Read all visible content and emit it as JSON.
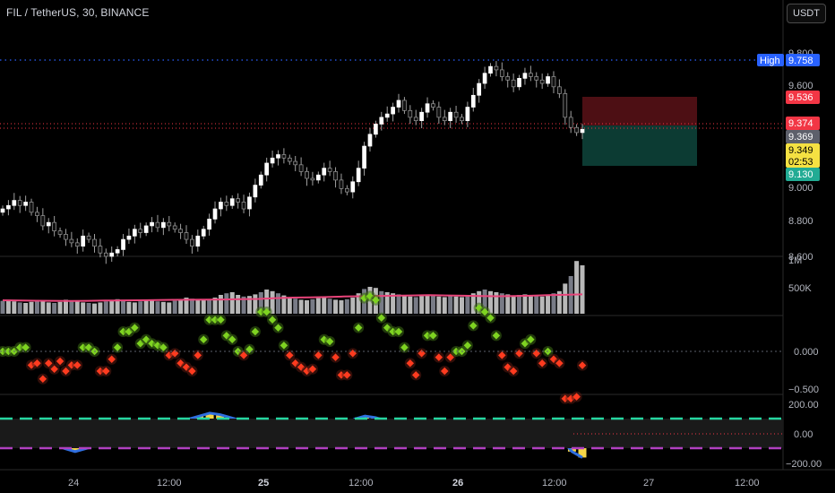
{
  "header": {
    "symbol_title": "FIL / TetherUS, 30, BINANCE",
    "currency_button": "USDT"
  },
  "colors": {
    "background": "#000000",
    "bull_candle": "#ffffff",
    "bear_candle": "#000000",
    "wick": "#a0a0a0",
    "high_line": "#2962ff",
    "current_line": "#f23645",
    "stop_zone": "#4d0f14",
    "target_zone": "#0c3b33",
    "volume_ma": "#e8447a",
    "osc_up": "#7ed321",
    "osc_down": "#ff3b1f",
    "cci_bar": "#f5d547",
    "cci_line": "#2f6fe0",
    "cci_upper": "#26d6a0",
    "cci_lower": "#b040c0"
  },
  "price_axis": {
    "ticks": [
      "9.800",
      "9.600",
      "9.000",
      "8.800",
      "8.600"
    ]
  },
  "price_tags": {
    "high_label": "High",
    "high_value": "9.758",
    "stop_value": "9.536",
    "current_value": "9.374",
    "other_value": "9.369",
    "last_value": "9.349",
    "countdown": "02:53",
    "target_value": "9.130"
  },
  "volume_axis": {
    "ticks": [
      "1M",
      "500K"
    ]
  },
  "osc_axis": {
    "ticks": [
      "0.000",
      "−0.500"
    ]
  },
  "cci_axis": {
    "ticks": [
      "200.00",
      "0.00",
      "−200.00"
    ]
  },
  "time_axis": {
    "labels": [
      "24",
      "12:00",
      "25",
      "12:00",
      "26",
      "12:00",
      "27",
      "12:00"
    ]
  },
  "chart_data": {
    "type": "candlestick",
    "symbol": "FIL/USDT",
    "interval": "30",
    "ylim": [
      8.58,
      9.85
    ],
    "high": 9.758,
    "close": [
      8.88,
      8.9,
      8.93,
      8.9,
      8.92,
      8.86,
      8.84,
      8.78,
      8.8,
      8.75,
      8.73,
      8.7,
      8.68,
      8.66,
      8.72,
      8.7,
      8.66,
      8.62,
      8.6,
      8.62,
      8.64,
      8.7,
      8.72,
      8.76,
      8.74,
      8.78,
      8.8,
      8.77,
      8.8,
      8.78,
      8.76,
      8.74,
      8.7,
      8.66,
      8.72,
      8.76,
      8.82,
      8.88,
      8.92,
      8.9,
      8.94,
      8.92,
      8.88,
      8.95,
      9.02,
      9.08,
      9.15,
      9.18,
      9.2,
      9.18,
      9.16,
      9.14,
      9.1,
      9.06,
      9.05,
      9.08,
      9.12,
      9.1,
      9.05,
      9.0,
      8.98,
      9.04,
      9.12,
      9.25,
      9.32,
      9.38,
      9.42,
      9.44,
      9.48,
      9.52,
      9.46,
      9.42,
      9.4,
      9.45,
      9.5,
      9.48,
      9.42,
      9.4,
      9.45,
      9.42,
      9.4,
      9.48,
      9.55,
      9.62,
      9.68,
      9.72,
      9.7,
      9.66,
      9.64,
      9.6,
      9.65,
      9.68,
      9.66,
      9.64,
      9.62,
      9.66,
      9.6,
      9.56,
      9.42,
      9.36,
      9.33,
      9.349
    ],
    "volume_approx": [
      240000,
      260000,
      230000,
      210000,
      200000,
      220000,
      250000,
      230000,
      210000,
      200000,
      220000,
      260000,
      240000,
      230000,
      210000,
      200000,
      190000,
      210000,
      230000,
      250000,
      270000,
      240000,
      220000,
      210000,
      230000,
      260000,
      250000,
      230000,
      220000,
      210000,
      240000,
      260000,
      300000,
      280000,
      260000,
      250000,
      270000,
      300000,
      350000,
      380000,
      400000,
      350000,
      320000,
      330000,
      360000,
      400000,
      450000,
      420000,
      380000,
      340000,
      300000,
      280000,
      260000,
      250000,
      270000,
      290000,
      300000,
      280000,
      260000,
      250000,
      270000,
      300000,
      380000,
      460000,
      500000,
      480000,
      420000,
      400000,
      380000,
      360000,
      340000,
      320000,
      310000,
      330000,
      350000,
      340000,
      320000,
      310000,
      330000,
      320000,
      310000,
      340000,
      380000,
      420000,
      450000,
      420000,
      400000,
      380000,
      360000,
      340000,
      350000,
      360000,
      340000,
      330000,
      320000,
      340000,
      380000,
      420000,
      560000,
      700000,
      980000,
      900000
    ],
    "volume_ma_approx": [
      250000,
      245000,
      242000,
      240000,
      238000,
      240000,
      245000,
      248000,
      250000,
      255000,
      258000,
      260000,
      262000,
      265000,
      270000,
      275000,
      290000,
      300000,
      305000,
      310000,
      320000,
      325000,
      330000,
      335000,
      340000,
      345000,
      340000,
      335000,
      330000,
      325000,
      330000,
      335000,
      345000,
      352000,
      360000
    ],
    "cci_approx": [
      20,
      15,
      5,
      -10,
      -40,
      -70,
      -100,
      -120,
      -100,
      -80,
      -60,
      -40,
      -20,
      0,
      20,
      40,
      60,
      80,
      100,
      120,
      140,
      130,
      110,
      90,
      70,
      50,
      30,
      10,
      -10,
      -20,
      -30,
      -10,
      20,
      60,
      100,
      120,
      110,
      90,
      70,
      50,
      30,
      10,
      -10,
      -20,
      -10,
      20,
      60,
      80,
      100,
      90,
      60,
      40,
      20,
      0,
      -40,
      -120,
      -160
    ]
  }
}
